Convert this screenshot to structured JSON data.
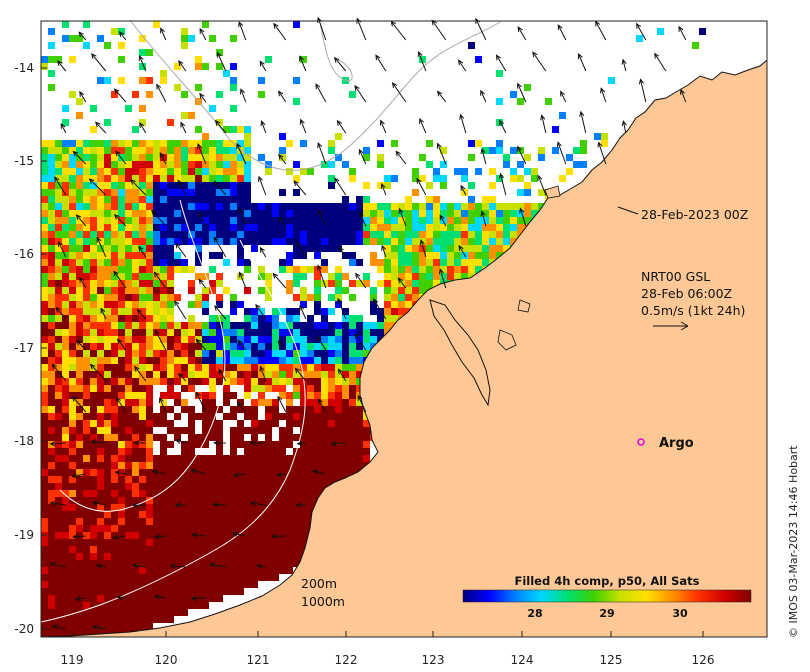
{
  "map": {
    "x_ticks": [
      "119",
      "120",
      "121",
      "122",
      "123",
      "124",
      "125",
      "126"
    ],
    "y_ticks": [
      "-14",
      "-15",
      "-16",
      "-17",
      "-18",
      "-19",
      "-20"
    ],
    "colors": {
      "land": "#fdc896",
      "coast": "#111111",
      "contour": "#ffffff",
      "argo_marker": "#e600e6"
    }
  },
  "annotations": {
    "analysis_time": "28-Feb-2023 00Z",
    "current_source": "NRT00 GSL",
    "current_time": "28-Feb 06:00Z",
    "scale_label": "0.5m/s (1kt 24h)",
    "argo_label": "Argo",
    "contour_200": "200m",
    "contour_1000": "1000m"
  },
  "colorbar": {
    "title": "Filled 4h comp, p50, All Sats",
    "ticks": [
      "28",
      "29",
      "30"
    ],
    "stops": [
      "#00007f",
      "#0000ff",
      "#0080ff",
      "#00d8ff",
      "#00e070",
      "#40d000",
      "#c8e000",
      "#ffe000",
      "#ff9000",
      "#ff3000",
      "#d00000",
      "#800000"
    ]
  },
  "credit": "© IMOS 03-Mar-2023 14:46 Hobart"
}
